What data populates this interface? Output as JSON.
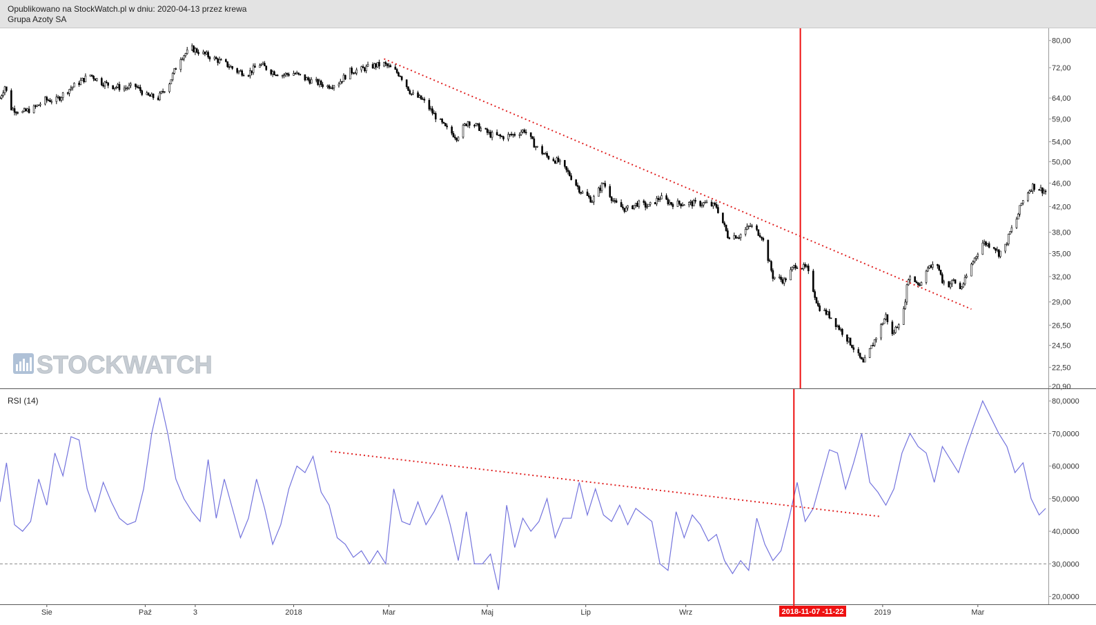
{
  "header": {
    "published": "Opublikowano na StockWatch.pl w dniu: 2020-04-13 przez krewa",
    "instrument": "Grupa Azoty SA"
  },
  "watermark": {
    "text": "STOCKWATCH",
    "icon": "bar-chart-icon"
  },
  "colors": {
    "candle": "#000000",
    "rsi_line": "#7373dd",
    "trendline": "#e02020",
    "marker": "#ee1111",
    "header_bg": "#e3e3e3"
  },
  "chart_data": [
    {
      "type": "candlestick",
      "title": "",
      "scale": "log",
      "ylim": [
        20.9,
        83.0
      ],
      "yticks": [
        "20,90",
        "22,50",
        "24,50",
        "26,50",
        "29,00",
        "32,00",
        "35,00",
        "38,00",
        "42,00",
        "46,00",
        "50,00",
        "54,00",
        "59,00",
        "64,00",
        "72,00",
        "80,00"
      ],
      "xlim": [
        "2017-07-03",
        "2019-04-12"
      ],
      "xticks": [
        {
          "date": "2017-08-01",
          "label": "Sie"
        },
        {
          "date": "2017-10-01",
          "label": "Paź"
        },
        {
          "date": "2017-11-01",
          "label": "3"
        },
        {
          "date": "2018-01-01",
          "label": "2018"
        },
        {
          "date": "2018-03-01",
          "label": "Mar"
        },
        {
          "date": "2018-05-01",
          "label": "Maj"
        },
        {
          "date": "2018-07-01",
          "label": "Lip"
        },
        {
          "date": "2018-09-01",
          "label": "Wrz"
        },
        {
          "date": "2019-01-01",
          "label": "2019"
        },
        {
          "date": "2019-03-01",
          "label": "Mar"
        }
      ],
      "close_path": [
        [
          "2017-07-03",
          64
        ],
        [
          "2017-07-06",
          67
        ],
        [
          "2017-07-10",
          61.5
        ],
        [
          "2017-07-17",
          60.5
        ],
        [
          "2017-07-24",
          61.5
        ],
        [
          "2017-07-31",
          63.5
        ],
        [
          "2017-08-07",
          63.5
        ],
        [
          "2017-08-14",
          66
        ],
        [
          "2017-08-21",
          68
        ],
        [
          "2017-08-28",
          70
        ],
        [
          "2017-09-04",
          68
        ],
        [
          "2017-09-11",
          67
        ],
        [
          "2017-09-18",
          66.5
        ],
        [
          "2017-09-25",
          67
        ],
        [
          "2017-10-02",
          64.5
        ],
        [
          "2017-10-09",
          64
        ],
        [
          "2017-10-16",
          68
        ],
        [
          "2017-10-23",
          75
        ],
        [
          "2017-10-30",
          77.5
        ],
        [
          "2017-11-06",
          76
        ],
        [
          "2017-11-13",
          74.5
        ],
        [
          "2017-11-20",
          73
        ],
        [
          "2017-11-27",
          71
        ],
        [
          "2017-12-04",
          70.5
        ],
        [
          "2017-12-11",
          73
        ],
        [
          "2017-12-18",
          71
        ],
        [
          "2017-12-25",
          70
        ],
        [
          "2018-01-01",
          70.5
        ],
        [
          "2018-01-08",
          69
        ],
        [
          "2018-01-15",
          68
        ],
        [
          "2018-01-22",
          67
        ],
        [
          "2018-01-29",
          68
        ],
        [
          "2018-02-05",
          71
        ],
        [
          "2018-02-12",
          71.5
        ],
        [
          "2018-02-19",
          72.5
        ],
        [
          "2018-02-26",
          73
        ],
        [
          "2018-03-05",
          71
        ],
        [
          "2018-03-08",
          70
        ],
        [
          "2018-03-15",
          65
        ],
        [
          "2018-03-22",
          63.5
        ],
        [
          "2018-03-29",
          60
        ],
        [
          "2018-04-05",
          57
        ],
        [
          "2018-04-12",
          55
        ],
        [
          "2018-04-19",
          58.5
        ],
        [
          "2018-04-26",
          57
        ],
        [
          "2018-05-03",
          55.5
        ],
        [
          "2018-05-10",
          55
        ],
        [
          "2018-05-17",
          55.5
        ],
        [
          "2018-05-24",
          56.5
        ],
        [
          "2018-05-31",
          53
        ],
        [
          "2018-06-07",
          51
        ],
        [
          "2018-06-14",
          50
        ],
        [
          "2018-06-21",
          47.5
        ],
        [
          "2018-06-28",
          44.5
        ],
        [
          "2018-07-05",
          43
        ],
        [
          "2018-07-12",
          46
        ],
        [
          "2018-07-19",
          42.5
        ],
        [
          "2018-07-26",
          41.5
        ],
        [
          "2018-08-02",
          42.5
        ],
        [
          "2018-08-09",
          42
        ],
        [
          "2018-08-16",
          43.5
        ],
        [
          "2018-08-23",
          42.5
        ],
        [
          "2018-08-30",
          42.5
        ],
        [
          "2018-09-06",
          42.5
        ],
        [
          "2018-09-13",
          42.5
        ],
        [
          "2018-09-20",
          42
        ],
        [
          "2018-09-27",
          37.5
        ],
        [
          "2018-10-04",
          37.5
        ],
        [
          "2018-10-11",
          39
        ],
        [
          "2018-10-18",
          37.5
        ],
        [
          "2018-10-25",
          32
        ],
        [
          "2018-11-01",
          31.5
        ],
        [
          "2018-11-08",
          33.5
        ],
        [
          "2018-11-15",
          33
        ],
        [
          "2018-11-22",
          28.5
        ],
        [
          "2018-11-29",
          27.5
        ],
        [
          "2018-12-06",
          26
        ],
        [
          "2018-12-13",
          24.5
        ],
        [
          "2018-12-17",
          23.5
        ],
        [
          "2018-12-20",
          22.8
        ],
        [
          "2018-12-24",
          24
        ],
        [
          "2018-12-27",
          25
        ],
        [
          "2019-01-03",
          27.5
        ],
        [
          "2019-01-07",
          25.5
        ],
        [
          "2019-01-10",
          26.5
        ],
        [
          "2019-01-14",
          28
        ],
        [
          "2019-01-17",
          32
        ],
        [
          "2019-01-21",
          31.5
        ],
        [
          "2019-01-24",
          31
        ],
        [
          "2019-01-28",
          33
        ],
        [
          "2019-02-04",
          33.5
        ],
        [
          "2019-02-07",
          31.5
        ],
        [
          "2019-02-11",
          31
        ],
        [
          "2019-02-14",
          31.5
        ],
        [
          "2019-02-18",
          30.5
        ],
        [
          "2019-02-21",
          31.5
        ],
        [
          "2019-02-25",
          33.5
        ],
        [
          "2019-03-04",
          36.5
        ],
        [
          "2019-03-11",
          36
        ],
        [
          "2019-03-14",
          35
        ],
        [
          "2019-03-18",
          36
        ],
        [
          "2019-03-21",
          38
        ],
        [
          "2019-03-25",
          40
        ],
        [
          "2019-03-28",
          42.5
        ],
        [
          "2019-04-01",
          44.5
        ],
        [
          "2019-04-04",
          45.5
        ],
        [
          "2019-04-08",
          45
        ],
        [
          "2019-04-12",
          44.5
        ]
      ],
      "trendline": [
        [
          "2018-02-26",
          74.5
        ],
        [
          "2019-02-25",
          28.2
        ]
      ],
      "marker_date": "2018-11-11"
    },
    {
      "type": "line",
      "title": "RSI (14)",
      "ylim": [
        18,
        83
      ],
      "yticks": [
        "20,0000",
        "30,0000",
        "40,0000",
        "50,0000",
        "60,0000",
        "70,0000",
        "80,0000"
      ],
      "reference_lines": [
        30,
        70
      ],
      "xlim": [
        "2017-07-03",
        "2019-04-12"
      ],
      "xticks": [
        {
          "date": "2017-08-01",
          "label": "Sie"
        },
        {
          "date": "2017-10-01",
          "label": "Paź"
        },
        {
          "date": "2017-11-01",
          "label": "3"
        },
        {
          "date": "2018-01-01",
          "label": "2018"
        },
        {
          "date": "2018-03-01",
          "label": "Mar"
        },
        {
          "date": "2018-05-01",
          "label": "Maj"
        },
        {
          "date": "2018-07-01",
          "label": "Lip"
        },
        {
          "date": "2018-09-01",
          "label": "Wrz"
        },
        {
          "date": "2019-01-01",
          "label": "2019"
        },
        {
          "date": "2019-03-01",
          "label": "Mar"
        }
      ],
      "series": [
        {
          "name": "",
          "points": [
            [
              "2017-07-03",
              49
            ],
            [
              "2017-07-07",
              61
            ],
            [
              "2017-07-12",
              42
            ],
            [
              "2017-07-17",
              40
            ],
            [
              "2017-07-22",
              43
            ],
            [
              "2017-07-27",
              56
            ],
            [
              "2017-08-01",
              48
            ],
            [
              "2017-08-06",
              64
            ],
            [
              "2017-08-11",
              57
            ],
            [
              "2017-08-16",
              69
            ],
            [
              "2017-08-21",
              68
            ],
            [
              "2017-08-26",
              53
            ],
            [
              "2017-08-31",
              46
            ],
            [
              "2017-09-05",
              55
            ],
            [
              "2017-09-10",
              49
            ],
            [
              "2017-09-15",
              44
            ],
            [
              "2017-09-20",
              42
            ],
            [
              "2017-09-25",
              43
            ],
            [
              "2017-09-30",
              53
            ],
            [
              "2017-10-05",
              70
            ],
            [
              "2017-10-10",
              81
            ],
            [
              "2017-10-15",
              70
            ],
            [
              "2017-10-20",
              56
            ],
            [
              "2017-10-25",
              50
            ],
            [
              "2017-10-30",
              46
            ],
            [
              "2017-11-04",
              43
            ],
            [
              "2017-11-09",
              62
            ],
            [
              "2017-11-14",
              44
            ],
            [
              "2017-11-19",
              56
            ],
            [
              "2017-11-24",
              47
            ],
            [
              "2017-11-29",
              38
            ],
            [
              "2017-12-04",
              44
            ],
            [
              "2017-12-09",
              56
            ],
            [
              "2017-12-14",
              47
            ],
            [
              "2017-12-19",
              36
            ],
            [
              "2017-12-24",
              42
            ],
            [
              "2017-12-29",
              53
            ],
            [
              "2018-01-03",
              60
            ],
            [
              "2018-01-08",
              58
            ],
            [
              "2018-01-13",
              63
            ],
            [
              "2018-01-18",
              52
            ],
            [
              "2018-01-23",
              48
            ],
            [
              "2018-01-28",
              38
            ],
            [
              "2018-02-02",
              36
            ],
            [
              "2018-02-07",
              32
            ],
            [
              "2018-02-12",
              34
            ],
            [
              "2018-02-17",
              30
            ],
            [
              "2018-02-22",
              34
            ],
            [
              "2018-02-27",
              30
            ],
            [
              "2018-03-04",
              53
            ],
            [
              "2018-03-09",
              43
            ],
            [
              "2018-03-14",
              42
            ],
            [
              "2018-03-19",
              49
            ],
            [
              "2018-03-24",
              42
            ],
            [
              "2018-03-29",
              46
            ],
            [
              "2018-04-03",
              51
            ],
            [
              "2018-04-08",
              42
            ],
            [
              "2018-04-13",
              31
            ],
            [
              "2018-04-18",
              46
            ],
            [
              "2018-04-23",
              30
            ],
            [
              "2018-04-28",
              30
            ],
            [
              "2018-05-03",
              33
            ],
            [
              "2018-05-08",
              22
            ],
            [
              "2018-05-13",
              48
            ],
            [
              "2018-05-18",
              35
            ],
            [
              "2018-05-23",
              44
            ],
            [
              "2018-05-28",
              40
            ],
            [
              "2018-06-02",
              43
            ],
            [
              "2018-06-07",
              50
            ],
            [
              "2018-06-12",
              38
            ],
            [
              "2018-06-17",
              44
            ],
            [
              "2018-06-22",
              44
            ],
            [
              "2018-06-27",
              55
            ],
            [
              "2018-07-02",
              45
            ],
            [
              "2018-07-07",
              53
            ],
            [
              "2018-07-12",
              45
            ],
            [
              "2018-07-17",
              43
            ],
            [
              "2018-07-22",
              48
            ],
            [
              "2018-07-27",
              42
            ],
            [
              "2018-08-01",
              47
            ],
            [
              "2018-08-06",
              45
            ],
            [
              "2018-08-11",
              43
            ],
            [
              "2018-08-16",
              30
            ],
            [
              "2018-08-21",
              28
            ],
            [
              "2018-08-26",
              46
            ],
            [
              "2018-08-31",
              38
            ],
            [
              "2018-09-05",
              45
            ],
            [
              "2018-09-10",
              42
            ],
            [
              "2018-09-15",
              37
            ],
            [
              "2018-09-20",
              39
            ],
            [
              "2018-09-25",
              31
            ],
            [
              "2018-09-30",
              27
            ],
            [
              "2018-10-05",
              31
            ],
            [
              "2018-10-10",
              28
            ],
            [
              "2018-10-15",
              44
            ],
            [
              "2018-10-20",
              36
            ],
            [
              "2018-10-25",
              31
            ],
            [
              "2018-10-30",
              34
            ],
            [
              "2018-11-04",
              44
            ],
            [
              "2018-11-09",
              55
            ],
            [
              "2018-11-14",
              43
            ],
            [
              "2018-11-19",
              47
            ],
            [
              "2018-11-24",
              56
            ],
            [
              "2018-11-29",
              65
            ],
            [
              "2018-12-04",
              64
            ],
            [
              "2018-12-09",
              53
            ],
            [
              "2018-12-14",
              61
            ],
            [
              "2018-12-19",
              70
            ],
            [
              "2018-12-24",
              55
            ],
            [
              "2018-12-29",
              52
            ],
            [
              "2019-01-03",
              48
            ],
            [
              "2019-01-08",
              53
            ],
            [
              "2019-01-13",
              64
            ],
            [
              "2019-01-18",
              70
            ],
            [
              "2019-01-23",
              66
            ],
            [
              "2019-01-28",
              64
            ],
            [
              "2019-02-02",
              55
            ],
            [
              "2019-02-07",
              66
            ],
            [
              "2019-02-12",
              62
            ],
            [
              "2019-02-17",
              58
            ],
            [
              "2019-02-22",
              66
            ],
            [
              "2019-02-27",
              73
            ],
            [
              "2019-03-04",
              80
            ],
            [
              "2019-03-09",
              75
            ],
            [
              "2019-03-14",
              70
            ],
            [
              "2019-03-19",
              66
            ],
            [
              "2019-03-24",
              58
            ],
            [
              "2019-03-29",
              61
            ],
            [
              "2019-04-03",
              50
            ],
            [
              "2019-04-08",
              45
            ],
            [
              "2019-04-12",
              47
            ]
          ]
        }
      ],
      "trendline": [
        [
          "2018-01-24",
          64.5
        ],
        [
          "2018-12-31",
          44.5
        ]
      ],
      "marker_date": "2018-11-07"
    }
  ],
  "crosshair_date_label": "2018-11-07 -11-22"
}
